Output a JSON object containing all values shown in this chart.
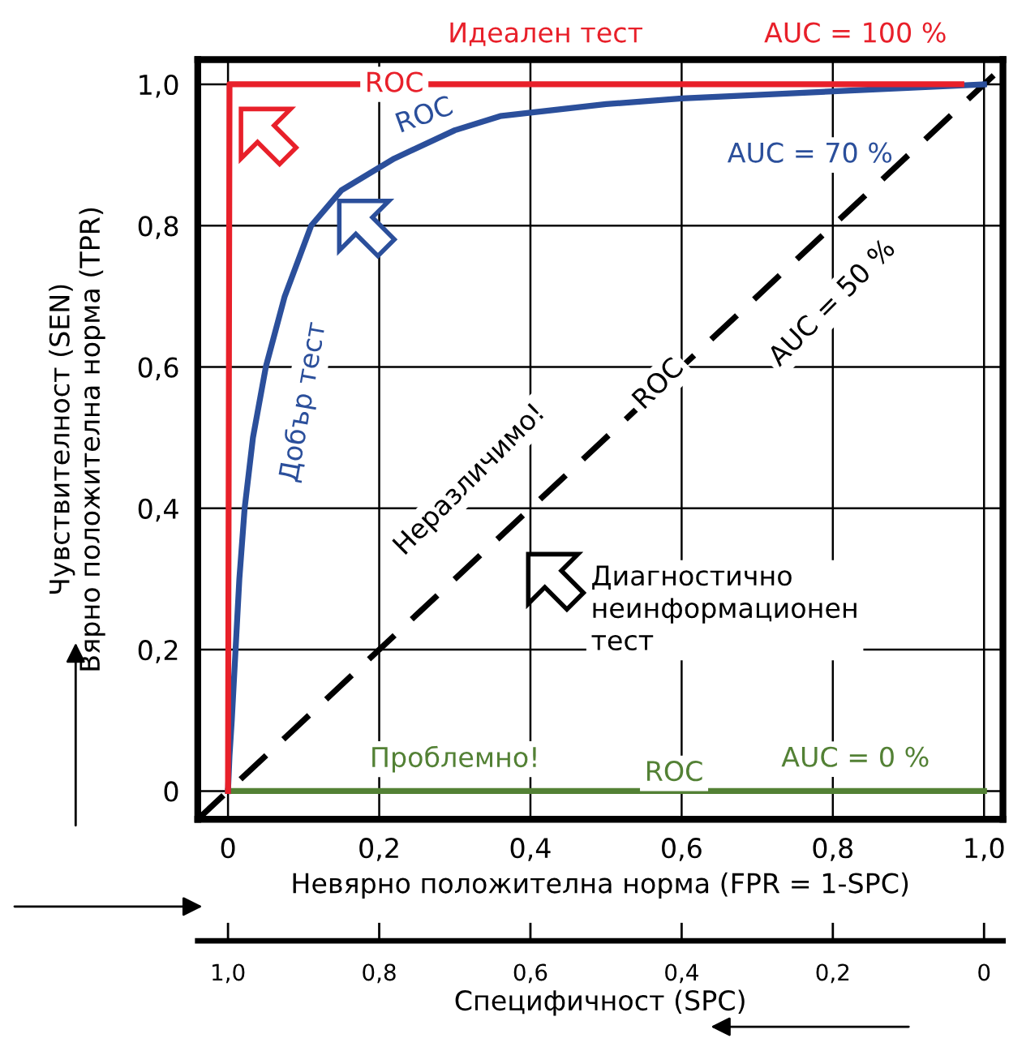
{
  "chart_data": {
    "type": "line",
    "xlabel": "Невярно положителна норма (FPR = 1-SPC)",
    "ylabel": "Чувствителност (SEN)\nВярно положителна норма (TPR)",
    "x2label": "Специфичност (SPC)",
    "xlim": [
      -0.04,
      1.025
    ],
    "ylim": [
      -0.04,
      1.035
    ],
    "x2lim": [
      1.04,
      -0.025
    ],
    "xticks": [
      {
        "value": 0,
        "label": "0"
      },
      {
        "value": 0.2,
        "label": "0,2"
      },
      {
        "value": 0.4,
        "label": "0,4"
      },
      {
        "value": 0.6,
        "label": "0,6"
      },
      {
        "value": 0.8,
        "label": "0,8"
      },
      {
        "value": 1.0,
        "label": "1,0"
      }
    ],
    "yticks": [
      {
        "value": 0,
        "label": "0"
      },
      {
        "value": 0.2,
        "label": "0,2"
      },
      {
        "value": 0.4,
        "label": "0,4"
      },
      {
        "value": 0.6,
        "label": "0,6"
      },
      {
        "value": 0.8,
        "label": "0,8"
      },
      {
        "value": 1.0,
        "label": "1,0"
      }
    ],
    "x2ticks": [
      {
        "value": 1.0,
        "label": "1,0"
      },
      {
        "value": 0.8,
        "label": "0,8"
      },
      {
        "value": 0.6,
        "label": "0,6"
      },
      {
        "value": 0.4,
        "label": "0,4"
      },
      {
        "value": 0.2,
        "label": "0,2"
      },
      {
        "value": 0,
        "label": "0"
      }
    ],
    "grid": true,
    "marker": "none",
    "series": [
      {
        "color": "#e8202a",
        "x": [
          0,
          0.002,
          0.97
        ],
        "values": [
          0,
          1,
          1
        ],
        "line_style": "solid"
      },
      {
        "color": "#2b4f9b",
        "x": [
          0,
          0.002,
          0.005,
          0.01,
          0.015,
          0.022,
          0.033,
          0.05,
          0.075,
          0.11,
          0.15,
          0.22,
          0.3,
          0.36,
          0.5,
          0.6,
          0.8,
          1.0
        ],
        "values": [
          0,
          0.05,
          0.1,
          0.2,
          0.3,
          0.4,
          0.5,
          0.6,
          0.7,
          0.8,
          0.85,
          0.895,
          0.935,
          0.955,
          0.972,
          0.98,
          0.99,
          1.0
        ],
        "line_style": "solid"
      },
      {
        "color": "#000000",
        "x": [
          -0.04,
          1.02
        ],
        "values": [
          -0.04,
          1.02
        ],
        "line_style": "dashed"
      },
      {
        "color": "#538135",
        "x": [
          0,
          1
        ],
        "values": [
          0,
          0
        ],
        "line_style": "solid"
      }
    ],
    "annotations": [
      "Идеален тест",
      {
        "text": "ROC",
        "x": 0.22,
        "y": 1.0
      },
      "AUC = 100 %",
      "ROC",
      "AUC = 70 %",
      "Добър тест",
      "Неразличимо!",
      {
        "text": "ROC",
        "x": 0.57,
        "y": 0.575
      },
      "AUC = 50 %",
      "Диагностично\nнеинформационен\nтест",
      "Проблемно!",
      {
        "text": "ROC",
        "x": 0.59,
        "y": 0.025
      },
      "AUC = 0 %"
    ]
  }
}
